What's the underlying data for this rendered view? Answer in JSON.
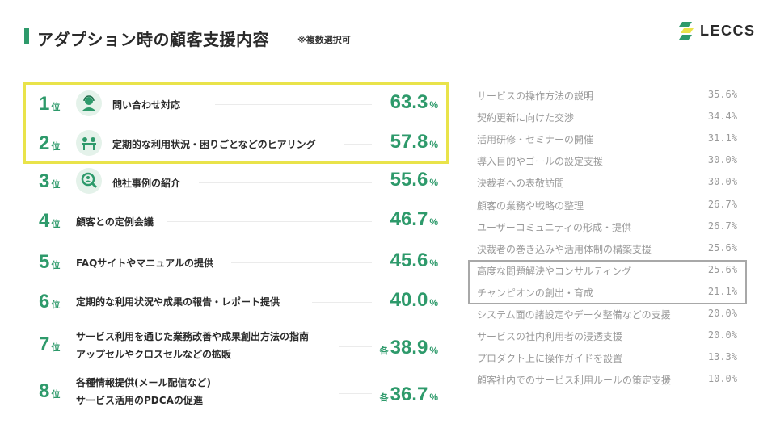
{
  "header": {
    "title": "アダプション時の顧客支援内容",
    "note": "※複数選択可",
    "logo_text": "LECCS"
  },
  "colors": {
    "accent": "#2e9a6b",
    "highlight_yellow": "#e9e34a",
    "highlight_gray": "#a8a8a8",
    "muted_text": "#9a9a9a"
  },
  "ranking": [
    {
      "rank": "1",
      "suffix": "位",
      "icon": "support-agent-icon",
      "lines": [
        "問い合わせ対応"
      ],
      "prefix": "",
      "value": "63.3",
      "unit": "%"
    },
    {
      "rank": "2",
      "suffix": "位",
      "icon": "meeting-icon",
      "lines": [
        "定期的な利用状況・困りごとなどのヒアリング"
      ],
      "prefix": "",
      "value": "57.8",
      "unit": "%"
    },
    {
      "rank": "3",
      "suffix": "位",
      "icon": "magnifier-person-icon",
      "lines": [
        "他社事例の紹介"
      ],
      "prefix": "",
      "value": "55.6",
      "unit": "%"
    },
    {
      "rank": "4",
      "suffix": "位",
      "icon": "",
      "lines": [
        "顧客との定例会議"
      ],
      "prefix": "",
      "value": "46.7",
      "unit": "%"
    },
    {
      "rank": "5",
      "suffix": "位",
      "icon": "",
      "lines": [
        "FAQサイトやマニュアルの提供"
      ],
      "prefix": "",
      "value": "45.6",
      "unit": "%"
    },
    {
      "rank": "6",
      "suffix": "位",
      "icon": "",
      "lines": [
        "定期的な利用状況や成果の報告・レポート提供"
      ],
      "prefix": "",
      "value": "40.0",
      "unit": "%"
    },
    {
      "rank": "7",
      "suffix": "位",
      "icon": "",
      "lines": [
        "サービス利用を通じた業務改善や成果創出方法の指南",
        "アップセルやクロスセルなどの拡販"
      ],
      "prefix": "各",
      "value": "38.9",
      "unit": "%"
    },
    {
      "rank": "8",
      "suffix": "位",
      "icon": "",
      "lines": [
        "各種情報提供(メール配信など)",
        "サービス活用のPDCAの促進"
      ],
      "prefix": "各",
      "value": "36.7",
      "unit": "%"
    }
  ],
  "others": [
    {
      "label": "サービスの操作方法の説明",
      "value": "35.6%"
    },
    {
      "label": "契約更新に向けた交渉",
      "value": "34.4%"
    },
    {
      "label": "活用研修・セミナーの開催",
      "value": "31.1%"
    },
    {
      "label": "導入目的やゴールの設定支援",
      "value": "30.0%"
    },
    {
      "label": "決裁者への表敬訪問",
      "value": "30.0%"
    },
    {
      "label": "顧客の業務や戦略の整理",
      "value": "26.7%"
    },
    {
      "label": "ユーザーコミュニティの形成・提供",
      "value": "26.7%"
    },
    {
      "label": "決裁者の巻き込みや活用体制の構築支援",
      "value": "25.6%"
    },
    {
      "label": "高度な問題解決やコンサルティング",
      "value": "25.6%"
    },
    {
      "label": "チャンピオンの創出・育成",
      "value": "21.1%"
    },
    {
      "label": "システム面の諸設定やデータ整備などの支援",
      "value": "20.0%"
    },
    {
      "label": "サービスの社内利用者の浸透支援",
      "value": "20.0%"
    },
    {
      "label": "プロダクト上に操作ガイドを設置",
      "value": "13.3%"
    },
    {
      "label": "顧客社内でのサービス利用ルールの策定支援",
      "value": "10.0%"
    }
  ]
}
